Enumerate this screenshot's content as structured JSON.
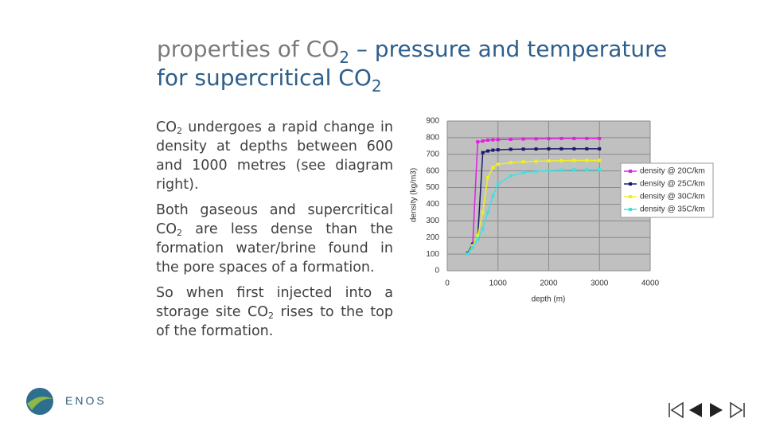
{
  "slide": {
    "title": [
      [
        {
          "text": "properties of CO"
        },
        {
          "sub": "2"
        },
        {
          "text": " – pressure and temperature"
        }
      ],
      [
        {
          "text": "for supercritical CO"
        },
        {
          "sub": "2"
        }
      ]
    ],
    "paragraphs": [
      [
        {
          "text": "CO"
        },
        {
          "sub": "2"
        },
        {
          "text": " undergoes a rapid change in density at depths between 600 and 1000 metres (see diagram right)."
        }
      ],
      [
        {
          "text": "Both gaseous and supercritical CO"
        },
        {
          "sub": "2"
        },
        {
          "text": " are less dense than the formation water/brine found in the pore spaces of a formation."
        }
      ],
      [
        {
          "text": "So when first injected into a storage site CO"
        },
        {
          "sub": "2"
        },
        {
          "text": " rises to the top of the formation."
        }
      ]
    ],
    "logo": "ENOS"
  },
  "chart_data": {
    "type": "line",
    "x_label": "depth (m)",
    "y_label": "density (kg/m3)",
    "x": [
      400,
      500,
      600,
      700,
      800,
      900,
      1000,
      1250,
      1500,
      1750,
      2000,
      2250,
      2500,
      2750,
      3000
    ],
    "series": [
      {
        "name": "density @ 20C/km",
        "color": "#e020e0",
        "values": [
          105,
          150,
          775,
          780,
          785,
          787,
          788,
          790,
          792,
          793,
          794,
          795,
          795,
          795,
          795
        ]
      },
      {
        "name": "density @ 25C/km",
        "color": "#1a1a6e",
        "values": [
          105,
          160,
          200,
          710,
          720,
          725,
          727,
          730,
          731,
          732,
          733,
          733,
          733,
          733,
          733
        ]
      },
      {
        "name": "density @ 30C/km",
        "color": "#f0f020",
        "values": [
          100,
          150,
          210,
          350,
          560,
          620,
          640,
          650,
          655,
          658,
          660,
          662,
          663,
          663,
          663
        ]
      },
      {
        "name": "density @ 35C/km",
        "color": "#40e0e0",
        "values": [
          100,
          140,
          190,
          250,
          350,
          450,
          520,
          570,
          590,
          598,
          602,
          605,
          607,
          608,
          608
        ]
      }
    ],
    "xlim": [
      0,
      4000
    ],
    "xticks": [
      0,
      1000,
      2000,
      3000,
      4000
    ],
    "ylim": [
      0,
      900
    ],
    "yticks": [
      0,
      100,
      200,
      300,
      400,
      500,
      600,
      700,
      800,
      900
    ],
    "grid": true,
    "legend": "right"
  }
}
